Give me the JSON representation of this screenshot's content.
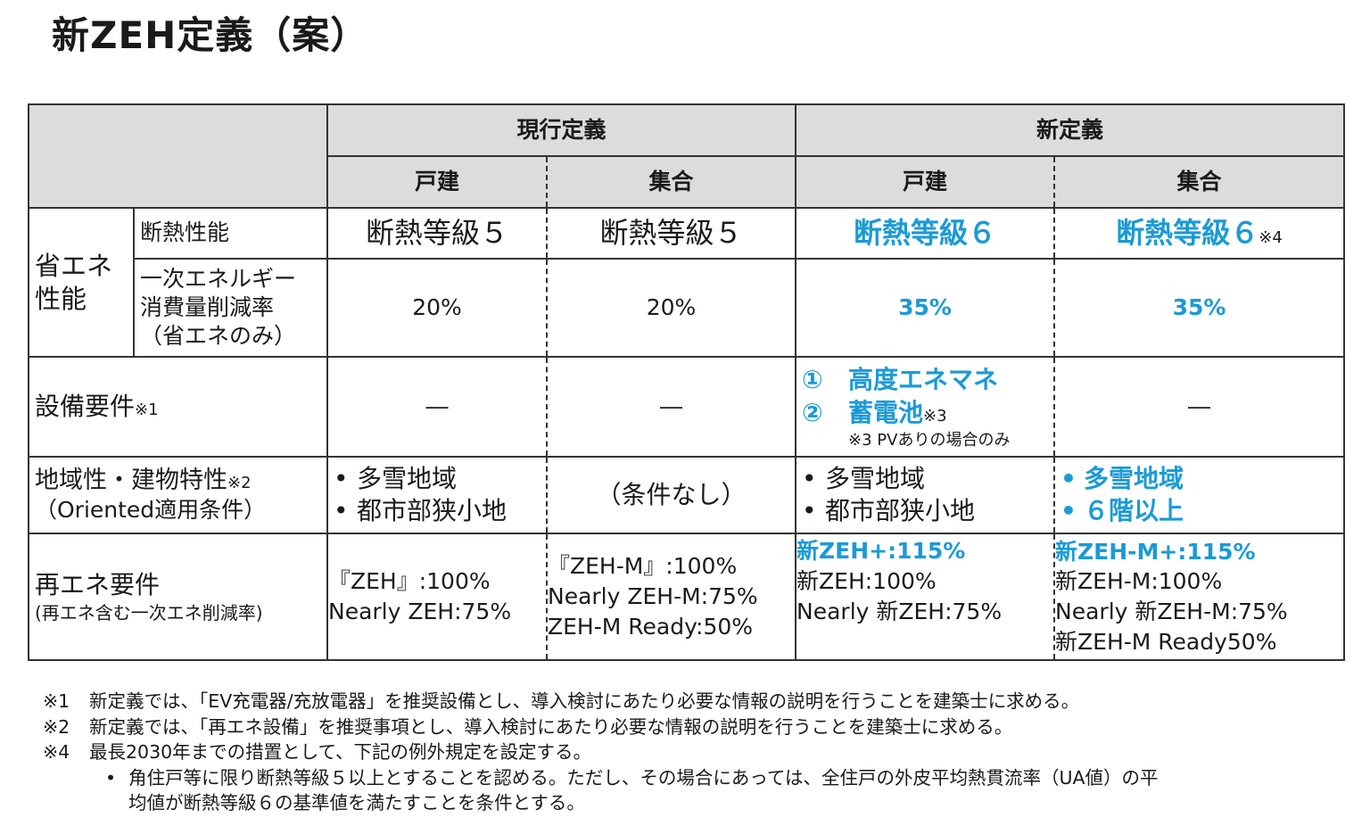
{
  "title": "新ZEH定義（案）",
  "header": {
    "current": "現行定義",
    "new": "新定義",
    "detached": "戸建",
    "collective": "集合"
  },
  "rows": {
    "energy_group": "省エネ性能",
    "insulation": {
      "label": "断熱性能",
      "cur_detached": "断熱等級５",
      "cur_collective": "断熱等級５",
      "new_detached": "断熱等級６",
      "new_collective": "断熱等級６",
      "new_collective_note": "※4"
    },
    "primary_energy": {
      "label_l1": "一次エネルギー",
      "label_l2": "消費量削減率",
      "label_l3": "（省エネのみ）",
      "cur_detached": "20%",
      "cur_collective": "20%",
      "new_detached": "35%",
      "new_collective": "35%"
    },
    "equipment": {
      "label": "設備要件",
      "label_note": "※1",
      "cur_detached": "―",
      "cur_collective": "―",
      "new_item1_num": "①",
      "new_item1": "高度エネマネ",
      "new_item2_num": "②",
      "new_item2": "蓄電池",
      "new_item2_note": "※3",
      "new_sub_note": "※3 PVありの場合のみ",
      "new_collective": "―"
    },
    "regional": {
      "label": "地域性・建物特性",
      "label_note": "※2",
      "label_l2": "（Oriented適用条件）",
      "cur_detached_items": [
        "多雪地域",
        "都市部狭小地"
      ],
      "cur_collective": "（条件なし）",
      "new_detached_items": [
        "多雪地域",
        "都市部狭小地"
      ],
      "new_collective_items": [
        "多雪地域",
        "６階以上"
      ]
    },
    "renewable": {
      "label": "再エネ要件",
      "label_l2": "(再エネ含む一次エネ削減率)",
      "cur_detached": [
        "『ZEH』:100%",
        "Nearly ZEH:75%"
      ],
      "cur_collective": [
        "『ZEH-M』:100%",
        "Nearly ZEH-M:75%",
        "ZEH-M Ready:50%"
      ],
      "new_detached_highlight": "新ZEH+:115%",
      "new_detached": [
        "新ZEH:100%",
        "Nearly 新ZEH:75%"
      ],
      "new_collective_highlight": "新ZEH-M+:115%",
      "new_collective": [
        "新ZEH-M:100%",
        "Nearly 新ZEH-M:75%",
        "新ZEH-M Ready50%"
      ]
    }
  },
  "footnotes": {
    "n1_mark": "※1",
    "n1": "新定義では、「EV充電器/充放電器」を推奨設備とし、導入検討にあたり必要な情報の説明を行うことを建築士に求める。",
    "n2_mark": "※2",
    "n2": "新定義では、「再エネ設備」を推奨事項とし、導入検討にあたり必要な情報の説明を行うことを建築士に求める。",
    "n4_mark": "※4",
    "n4": "最長2030年までの措置として、下記の例外規定を設定する。",
    "n4_bullet": "•",
    "n4_sub_l1": "角住戸等に限り断熱等級５以上とすることを認める。ただし、その場合にあっては、全住戸の外皮平均熱貫流率（UA値）の平",
    "n4_sub_l2": "均値が断熱等級６の基準値を満たすことを条件とする。"
  },
  "colors": {
    "accent_blue": "#1b9ad6",
    "header_gray": "#dcdcdc"
  }
}
